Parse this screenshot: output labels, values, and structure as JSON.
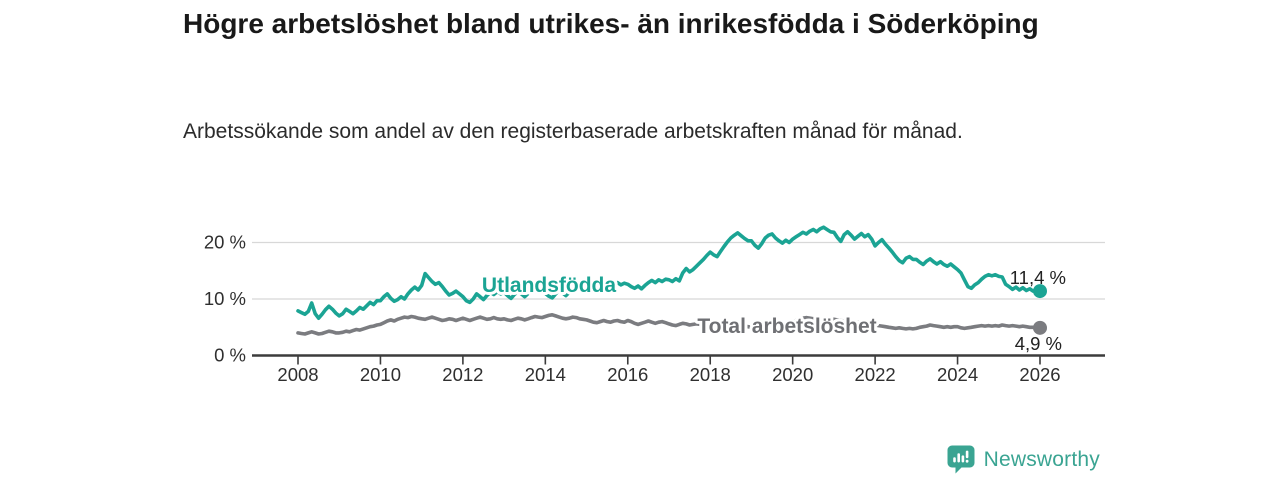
{
  "header": {
    "title": "Högre arbetslöshet bland utrikes- än inrikesfödda i Söderköping",
    "subtitle": "Arbetssökande som andel av den registerbaserade arbetskraften månad för månad."
  },
  "branding": {
    "logo_text": "Newsworthy",
    "logo_color": "#3aa492",
    "logo_icon": "bar-chart-speech-bubble"
  },
  "chart_data": {
    "type": "line",
    "title": "Högre arbetslöshet bland utrikes- än inrikesfödda i Söderköping",
    "subtitle": "Arbetssökande som andel av den registerbaserade arbetskraften månad för månad.",
    "x": {
      "start_year": 2008,
      "end_year": 2026,
      "interval": "monthly"
    },
    "x_tick_labels": [
      "2008",
      "2010",
      "2012",
      "2014",
      "2016",
      "2018",
      "2020",
      "2022",
      "2024",
      "2026"
    ],
    "y_ticks": [
      0,
      10,
      20
    ],
    "y_tick_labels": [
      "0 %",
      "10 %",
      "20 %"
    ],
    "ylim": [
      0,
      24
    ],
    "grid": "horizontal",
    "legend_position": "inline-labels",
    "colors": {
      "utlandsfodda": "#1ba494",
      "total": "#7b7c80",
      "grid": "#d8d8d8",
      "axis": "#3c3c3c",
      "value_label": "#222222",
      "total_label": "#6f7074"
    },
    "series": [
      {
        "name": "Utlandsfödda",
        "end_label": "11,4 %",
        "end_value": 11.4,
        "values": [
          7.9,
          7.6,
          7.3,
          7.8,
          9.3,
          7.4,
          6.6,
          7.3,
          8.1,
          8.7,
          8.2,
          7.5,
          7.0,
          7.4,
          8.2,
          7.8,
          7.4,
          7.9,
          8.5,
          8.2,
          8.8,
          9.4,
          9.0,
          9.7,
          9.7,
          10.4,
          10.9,
          10.1,
          9.6,
          9.9,
          10.4,
          10.0,
          10.9,
          11.6,
          12.1,
          11.6,
          12.4,
          14.5,
          13.8,
          13.1,
          12.6,
          12.9,
          12.2,
          11.4,
          10.7,
          11.0,
          11.4,
          10.9,
          10.4,
          9.7,
          9.4,
          10.0,
          10.9,
          10.4,
          9.9,
          10.6,
          11.2,
          10.8,
          11.3,
          10.9,
          11.2,
          10.6,
          10.1,
          10.8,
          11.3,
          10.9,
          10.4,
          11.0,
          11.6,
          11.2,
          11.7,
          11.3,
          11.0,
          10.5,
          10.2,
          10.9,
          11.5,
          11.1,
          10.6,
          11.2,
          11.8,
          11.4,
          11.9,
          11.5,
          11.8,
          11.4,
          11.9,
          12.4,
          12.0,
          12.6,
          12.2,
          12.8,
          12.4,
          12.9,
          12.5,
          12.8,
          12.6,
          12.2,
          11.9,
          12.3,
          11.8,
          12.4,
          12.9,
          13.3,
          12.9,
          13.4,
          13.1,
          13.5,
          13.4,
          13.1,
          13.6,
          13.2,
          14.6,
          15.4,
          14.8,
          15.2,
          15.8,
          16.4,
          17.0,
          17.7,
          18.3,
          17.8,
          17.5,
          18.4,
          19.3,
          20.1,
          20.8,
          21.3,
          21.7,
          21.2,
          20.7,
          20.3,
          20.3,
          19.5,
          19.0,
          19.8,
          20.8,
          21.3,
          21.5,
          20.8,
          20.3,
          19.9,
          20.4,
          20.0,
          20.6,
          21.0,
          21.4,
          21.8,
          21.5,
          22.0,
          22.3,
          21.9,
          22.4,
          22.7,
          22.3,
          21.9,
          21.8,
          20.9,
          20.2,
          21.4,
          21.9,
          21.3,
          20.6,
          21.1,
          21.6,
          21.0,
          21.4,
          20.6,
          19.4,
          20.0,
          20.5,
          19.7,
          19.0,
          18.3,
          17.5,
          16.8,
          16.4,
          17.2,
          17.5,
          17.0,
          17.0,
          16.5,
          16.1,
          16.7,
          17.1,
          16.6,
          16.2,
          16.6,
          16.1,
          15.8,
          16.2,
          15.7,
          15.2,
          14.6,
          13.4,
          12.2,
          11.9,
          12.5,
          12.9,
          13.5,
          14.0,
          14.3,
          14.1,
          14.3,
          14.0,
          13.9,
          12.6,
          12.2,
          11.7,
          12.1,
          11.6,
          12.0,
          11.5,
          11.8,
          11.4,
          11.5,
          11.4
        ]
      },
      {
        "name": "Total arbetslöshet",
        "end_label": "4,9 %",
        "end_value": 4.9,
        "values": [
          4.0,
          3.9,
          3.8,
          4.0,
          4.2,
          4.0,
          3.8,
          3.9,
          4.1,
          4.3,
          4.2,
          4.0,
          4.0,
          4.1,
          4.3,
          4.2,
          4.4,
          4.6,
          4.5,
          4.7,
          4.9,
          5.1,
          5.2,
          5.4,
          5.5,
          5.8,
          6.1,
          6.3,
          6.1,
          6.4,
          6.6,
          6.8,
          6.7,
          6.9,
          6.8,
          6.6,
          6.5,
          6.4,
          6.6,
          6.8,
          6.6,
          6.4,
          6.2,
          6.3,
          6.5,
          6.4,
          6.2,
          6.4,
          6.6,
          6.4,
          6.2,
          6.4,
          6.6,
          6.8,
          6.6,
          6.4,
          6.5,
          6.7,
          6.5,
          6.4,
          6.5,
          6.3,
          6.2,
          6.4,
          6.6,
          6.5,
          6.3,
          6.5,
          6.7,
          6.9,
          6.8,
          6.7,
          6.9,
          7.1,
          7.2,
          7.0,
          6.8,
          6.6,
          6.5,
          6.6,
          6.8,
          6.7,
          6.5,
          6.4,
          6.3,
          6.1,
          5.9,
          5.8,
          6.0,
          6.2,
          6.0,
          5.9,
          6.1,
          6.2,
          6.0,
          5.9,
          6.2,
          6.0,
          5.7,
          5.5,
          5.7,
          5.9,
          6.1,
          5.9,
          5.7,
          5.9,
          6.0,
          5.8,
          5.6,
          5.4,
          5.3,
          5.5,
          5.7,
          5.6,
          5.4,
          5.5,
          5.6,
          5.5,
          5.4,
          5.5,
          5.4,
          5.3,
          5.2,
          5.3,
          5.4,
          5.3,
          5.2,
          5.1,
          5.2,
          5.3,
          5.2,
          5.1,
          5.0,
          5.1,
          5.2,
          5.1,
          5.2,
          5.3,
          5.4,
          5.5,
          5.6,
          5.7,
          5.8,
          5.9,
          6.0,
          6.2,
          6.4,
          6.6,
          6.7,
          6.6,
          6.5,
          6.6,
          6.5,
          6.4,
          6.3,
          6.4,
          6.4,
          6.3,
          6.2,
          6.1,
          6.0,
          5.9,
          5.8,
          5.9,
          5.8,
          5.7,
          5.6,
          5.5,
          5.4,
          5.3,
          5.2,
          5.1,
          5.0,
          4.9,
          4.8,
          4.9,
          4.8,
          4.7,
          4.8,
          4.7,
          4.8,
          5.0,
          5.1,
          5.2,
          5.4,
          5.3,
          5.2,
          5.1,
          5.0,
          5.1,
          5.0,
          5.1,
          5.1,
          4.9,
          4.8,
          4.9,
          5.0,
          5.1,
          5.2,
          5.3,
          5.2,
          5.3,
          5.2,
          5.3,
          5.2,
          5.4,
          5.3,
          5.2,
          5.3,
          5.2,
          5.1,
          5.2,
          5.1,
          5.0,
          5.0,
          4.9,
          4.9
        ]
      }
    ]
  }
}
